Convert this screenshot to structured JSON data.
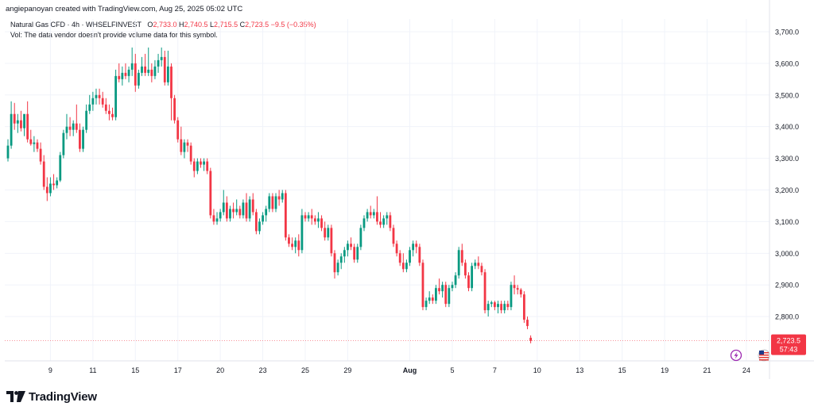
{
  "header": {
    "credit": "angiepanoyan created with TradingView.com, Aug 25, 2025 05:02 UTC"
  },
  "legend": {
    "symbol": "Natural Gas CFD · 4h · WHSELFINVEST",
    "open_label": "O",
    "open": "2,733.0",
    "high_label": "H",
    "high": "2,740.5",
    "low_label": "L",
    "low": "2,715.5",
    "close_label": "C",
    "close": "2,723.5",
    "change": "−9.5 (−0.35%)",
    "volume_note": "Vol: The data vendor doesn't provide volume data for this symbol."
  },
  "price_tag": {
    "price": "2,723.5",
    "countdown": "57:43"
  },
  "footer": {
    "brand": "TradingView"
  },
  "colors": {
    "up": "#089981",
    "down": "#f23645",
    "grid": "#f0f3fa",
    "axis_text": "#131722",
    "price_tag_bg": "#f23645",
    "price_line": "#f23645"
  },
  "icons": [
    "tradingview-logo-icon",
    "lightning-icon",
    "us-flag-icon"
  ],
  "chart_data": {
    "type": "candlestick",
    "timeframe": "4h",
    "ylim": [
      2660,
      3740
    ],
    "yticks": [
      2800,
      2900,
      3000,
      3100,
      3200,
      3300,
      3400,
      3500,
      3600,
      3700
    ],
    "ytick_labels": [
      "2,800.0",
      "2,900.0",
      "3,000.0",
      "3,100.0",
      "3,200.0",
      "3,300.0",
      "3,400.0",
      "3,500.0",
      "3,600.0",
      "3,700.0"
    ],
    "xticks": [
      {
        "index": 13,
        "label": "9"
      },
      {
        "index": 26,
        "label": "11"
      },
      {
        "index": 39,
        "label": "15"
      },
      {
        "index": 52,
        "label": "17"
      },
      {
        "index": 65,
        "label": "20"
      },
      {
        "index": 78,
        "label": "23"
      },
      {
        "index": 91,
        "label": "25"
      },
      {
        "index": 104,
        "label": "29"
      },
      {
        "index": 123,
        "label": "Aug"
      },
      {
        "index": 136,
        "label": "5"
      },
      {
        "index": 149,
        "label": "7"
      },
      {
        "index": 162,
        "label": "10"
      },
      {
        "index": 175,
        "label": "13"
      },
      {
        "index": 188,
        "label": "15"
      },
      {
        "index": 201,
        "label": "19"
      },
      {
        "index": 214,
        "label": "21"
      },
      {
        "index": 226,
        "label": "24"
      }
    ],
    "last_price": 2723.5,
    "candles": [
      [
        3300,
        3360,
        3290,
        3340
      ],
      [
        3340,
        3480,
        3330,
        3440
      ],
      [
        3440,
        3475,
        3390,
        3410
      ],
      [
        3410,
        3440,
        3380,
        3420
      ],
      [
        3420,
        3450,
        3385,
        3395
      ],
      [
        3395,
        3430,
        3370,
        3440
      ],
      [
        3440,
        3480,
        3350,
        3360
      ],
      [
        3360,
        3390,
        3340,
        3345
      ],
      [
        3345,
        3370,
        3320,
        3350
      ],
      [
        3350,
        3360,
        3320,
        3330
      ],
      [
        3330,
        3350,
        3280,
        3290
      ],
      [
        3290,
        3310,
        3200,
        3210
      ],
      [
        3210,
        3240,
        3165,
        3190
      ],
      [
        3190,
        3240,
        3180,
        3220
      ],
      [
        3220,
        3250,
        3200,
        3215
      ],
      [
        3215,
        3240,
        3205,
        3230
      ],
      [
        3230,
        3320,
        3225,
        3310
      ],
      [
        3310,
        3390,
        3300,
        3380
      ],
      [
        3380,
        3440,
        3360,
        3400
      ],
      [
        3400,
        3430,
        3370,
        3390
      ],
      [
        3390,
        3420,
        3370,
        3410
      ],
      [
        3410,
        3470,
        3380,
        3390
      ],
      [
        3390,
        3410,
        3320,
        3330
      ],
      [
        3330,
        3400,
        3320,
        3390
      ],
      [
        3390,
        3470,
        3380,
        3450
      ],
      [
        3450,
        3500,
        3440,
        3470
      ],
      [
        3470,
        3510,
        3450,
        3490
      ],
      [
        3490,
        3520,
        3470,
        3500
      ],
      [
        3500,
        3520,
        3470,
        3490
      ],
      [
        3490,
        3510,
        3460,
        3470
      ],
      [
        3470,
        3490,
        3440,
        3450
      ],
      [
        3450,
        3470,
        3420,
        3440
      ],
      [
        3440,
        3460,
        3420,
        3430
      ],
      [
        3430,
        3580,
        3420,
        3560
      ],
      [
        3560,
        3600,
        3540,
        3550
      ],
      [
        3550,
        3590,
        3530,
        3570
      ],
      [
        3570,
        3600,
        3550,
        3560
      ],
      [
        3560,
        3590,
        3540,
        3580
      ],
      [
        3580,
        3650,
        3560,
        3600
      ],
      [
        3600,
        3630,
        3510,
        3530
      ],
      [
        3530,
        3580,
        3520,
        3570
      ],
      [
        3570,
        3620,
        3560,
        3590
      ],
      [
        3590,
        3630,
        3560,
        3570
      ],
      [
        3570,
        3650,
        3560,
        3580
      ],
      [
        3580,
        3600,
        3540,
        3560
      ],
      [
        3560,
        3610,
        3550,
        3590
      ],
      [
        3590,
        3630,
        3570,
        3610
      ],
      [
        3610,
        3650,
        3590,
        3620
      ],
      [
        3620,
        3640,
        3530,
        3540
      ],
      [
        3540,
        3640,
        3530,
        3590
      ],
      [
        3590,
        3600,
        3420,
        3490
      ],
      [
        3490,
        3500,
        3410,
        3420
      ],
      [
        3420,
        3430,
        3350,
        3360
      ],
      [
        3360,
        3400,
        3310,
        3320
      ],
      [
        3320,
        3360,
        3300,
        3350
      ],
      [
        3350,
        3360,
        3320,
        3340
      ],
      [
        3340,
        3350,
        3280,
        3290
      ],
      [
        3290,
        3300,
        3240,
        3260
      ],
      [
        3260,
        3300,
        3250,
        3290
      ],
      [
        3290,
        3300,
        3270,
        3280
      ],
      [
        3280,
        3300,
        3260,
        3290
      ],
      [
        3290,
        3300,
        3250,
        3260
      ],
      [
        3260,
        3270,
        3110,
        3120
      ],
      [
        3120,
        3140,
        3090,
        3100
      ],
      [
        3100,
        3130,
        3090,
        3110
      ],
      [
        3110,
        3140,
        3100,
        3130
      ],
      [
        3130,
        3200,
        3120,
        3160
      ],
      [
        3160,
        3180,
        3100,
        3110
      ],
      [
        3110,
        3150,
        3100,
        3140
      ],
      [
        3140,
        3160,
        3110,
        3130
      ],
      [
        3130,
        3170,
        3120,
        3140
      ],
      [
        3140,
        3150,
        3110,
        3120
      ],
      [
        3120,
        3170,
        3110,
        3160
      ],
      [
        3160,
        3190,
        3100,
        3110
      ],
      [
        3110,
        3180,
        3100,
        3170
      ],
      [
        3170,
        3190,
        3120,
        3130
      ],
      [
        3130,
        3140,
        3060,
        3070
      ],
      [
        3070,
        3110,
        3060,
        3100
      ],
      [
        3100,
        3130,
        3090,
        3120
      ],
      [
        3120,
        3150,
        3100,
        3140
      ],
      [
        3140,
        3190,
        3130,
        3180
      ],
      [
        3180,
        3190,
        3130,
        3140
      ],
      [
        3140,
        3190,
        3130,
        3180
      ],
      [
        3180,
        3200,
        3150,
        3170
      ],
      [
        3170,
        3200,
        3160,
        3190
      ],
      [
        3190,
        3200,
        3040,
        3050
      ],
      [
        3050,
        3060,
        3020,
        3030
      ],
      [
        3030,
        3050,
        3010,
        3020
      ],
      [
        3020,
        3050,
        3000,
        3040
      ],
      [
        3040,
        3060,
        2990,
        3010
      ],
      [
        3010,
        3140,
        3000,
        3120
      ],
      [
        3120,
        3130,
        3100,
        3110
      ],
      [
        3110,
        3130,
        3100,
        3120
      ],
      [
        3120,
        3140,
        3090,
        3110
      ],
      [
        3110,
        3120,
        3090,
        3100
      ],
      [
        3100,
        3130,
        3080,
        3110
      ],
      [
        3110,
        3120,
        3070,
        3080
      ],
      [
        3080,
        3100,
        3040,
        3050
      ],
      [
        3050,
        3090,
        3040,
        3080
      ],
      [
        3080,
        3090,
        2990,
        3000
      ],
      [
        3000,
        3010,
        2920,
        2940
      ],
      [
        2940,
        2980,
        2930,
        2970
      ],
      [
        2970,
        3000,
        2950,
        2990
      ],
      [
        2990,
        3020,
        2970,
        3010
      ],
      [
        3010,
        3040,
        2990,
        3030
      ],
      [
        3030,
        3050,
        3010,
        3020
      ],
      [
        3020,
        3030,
        2970,
        2980
      ],
      [
        2980,
        3030,
        2970,
        3020
      ],
      [
        3020,
        3090,
        3010,
        3080
      ],
      [
        3080,
        3120,
        3070,
        3110
      ],
      [
        3110,
        3140,
        3100,
        3130
      ],
      [
        3130,
        3150,
        3110,
        3120
      ],
      [
        3120,
        3140,
        3110,
        3130
      ],
      [
        3130,
        3180,
        3090,
        3100
      ],
      [
        3100,
        3130,
        3080,
        3090
      ],
      [
        3090,
        3120,
        3080,
        3110
      ],
      [
        3110,
        3130,
        3090,
        3120
      ],
      [
        3120,
        3130,
        3070,
        3080
      ],
      [
        3080,
        3090,
        3020,
        3030
      ],
      [
        3030,
        3040,
        2990,
        3000
      ],
      [
        3000,
        3010,
        2960,
        2970
      ],
      [
        2970,
        3000,
        2940,
        2950
      ],
      [
        2950,
        2980,
        2940,
        2970
      ],
      [
        2970,
        3020,
        2960,
        3010
      ],
      [
        3010,
        3040,
        2990,
        3030
      ],
      [
        3030,
        3040,
        3000,
        3020
      ],
      [
        3020,
        3030,
        2960,
        2970
      ],
      [
        2970,
        2980,
        2820,
        2830
      ],
      [
        2830,
        2860,
        2820,
        2850
      ],
      [
        2850,
        2880,
        2840,
        2860
      ],
      [
        2860,
        2870,
        2840,
        2850
      ],
      [
        2850,
        2900,
        2840,
        2890
      ],
      [
        2890,
        2920,
        2870,
        2880
      ],
      [
        2880,
        2910,
        2860,
        2900
      ],
      [
        2900,
        2910,
        2830,
        2840
      ],
      [
        2840,
        2900,
        2830,
        2890
      ],
      [
        2890,
        2910,
        2880,
        2900
      ],
      [
        2900,
        2940,
        2890,
        2930
      ],
      [
        2930,
        3020,
        2920,
        3010
      ],
      [
        3010,
        3030,
        2960,
        2970
      ],
      [
        2970,
        2980,
        2920,
        2930
      ],
      [
        2930,
        2940,
        2880,
        2890
      ],
      [
        2890,
        2970,
        2880,
        2960
      ],
      [
        2960,
        2980,
        2950,
        2970
      ],
      [
        2970,
        2990,
        2950,
        2960
      ],
      [
        2960,
        2970,
        2930,
        2940
      ],
      [
        2940,
        2950,
        2810,
        2820
      ],
      [
        2820,
        2850,
        2800,
        2840
      ],
      [
        2840,
        2850,
        2830,
        2845
      ],
      [
        2845,
        2850,
        2820,
        2830
      ],
      [
        2830,
        2850,
        2810,
        2840
      ],
      [
        2840,
        2850,
        2810,
        2820
      ],
      [
        2820,
        2850,
        2810,
        2840
      ],
      [
        2840,
        2850,
        2820,
        2830
      ],
      [
        2830,
        2910,
        2820,
        2900
      ],
      [
        2900,
        2930,
        2870,
        2890
      ],
      [
        2890,
        2900,
        2870,
        2885
      ],
      [
        2885,
        2890,
        2860,
        2870
      ],
      [
        2870,
        2880,
        2780,
        2790
      ],
      [
        2790,
        2800,
        2760,
        2770
      ],
      [
        2733,
        2740.5,
        2715.5,
        2723.5
      ]
    ]
  }
}
